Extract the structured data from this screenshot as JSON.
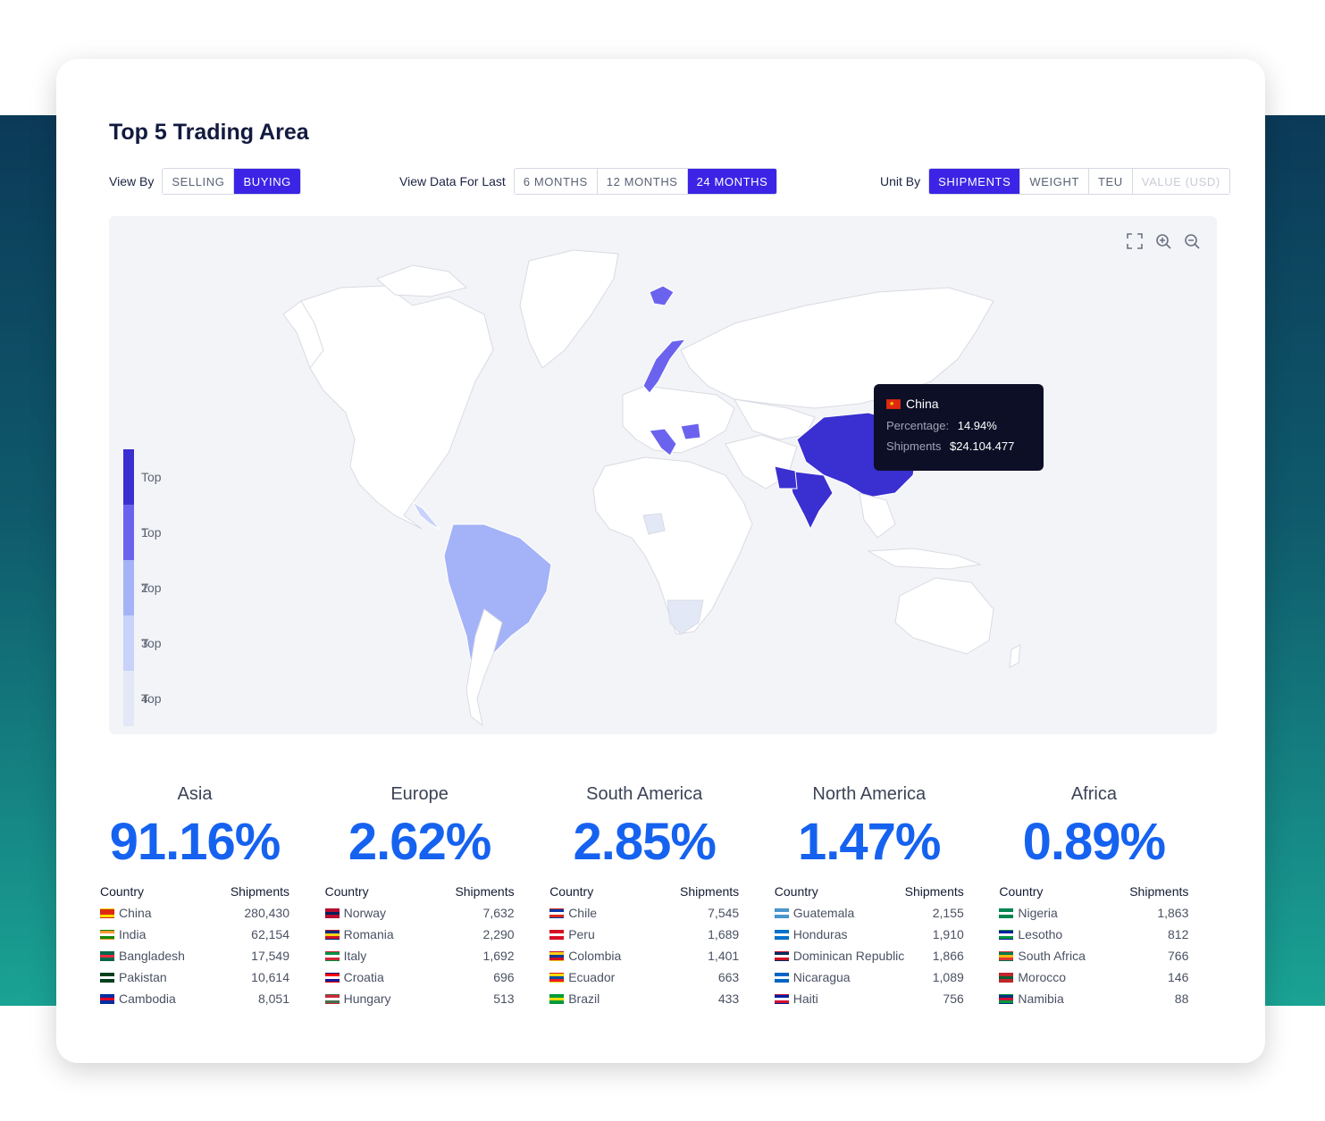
{
  "header": {
    "title": "Top 5 Trading Area"
  },
  "view_by": {
    "label": "View By",
    "options": [
      "SELLING",
      "BUYING"
    ],
    "selected": "BUYING"
  },
  "period": {
    "label": "View Data For Last",
    "options": [
      "6 MONTHS",
      "12 MONTHS",
      "24 MONTHS"
    ],
    "selected": "24 MONTHS"
  },
  "unit_by": {
    "label": "Unit By",
    "options": [
      "SHIPMENTS",
      "WEIGHT",
      "TEU",
      "VALUE (USD)"
    ],
    "selected": "SHIPMENTS",
    "disabled": [
      "VALUE (USD)"
    ]
  },
  "map": {
    "legend": [
      "Top 1",
      "Top 2",
      "Top 3",
      "Top 4",
      "Top 5"
    ],
    "legend_colors": [
      "#3a2fd0",
      "#6b63ee",
      "#a4b2f7",
      "#c8d2fa",
      "#e3e8f6"
    ],
    "tools": [
      "fullscreen-icon",
      "zoom-in-icon",
      "zoom-out-icon"
    ],
    "tooltip": {
      "country": "China",
      "percentage_label": "Percentage:",
      "percentage_value": "14.94%",
      "shipments_label": "Shipments",
      "shipments_value": "$24.104.477"
    }
  },
  "regions": [
    {
      "name": "Asia",
      "percent": "91.16%",
      "col_country": "Country",
      "col_shipments": "Shipments",
      "rows": [
        {
          "country": "China",
          "value": "280,430",
          "flag": [
            "#de2910",
            "#de2910",
            "#ffde00"
          ]
        },
        {
          "country": "India",
          "value": "62,154",
          "flag": [
            "#ff9933",
            "#ffffff",
            "#138808"
          ]
        },
        {
          "country": "Bangladesh",
          "value": "17,549",
          "flag": [
            "#006a4e",
            "#f42a41",
            "#006a4e"
          ]
        },
        {
          "country": "Pakistan",
          "value": "10,614",
          "flag": [
            "#01411c",
            "#ffffff",
            "#01411c"
          ]
        },
        {
          "country": "Cambodia",
          "value": "8,051",
          "flag": [
            "#032ea1",
            "#e00025",
            "#032ea1"
          ]
        }
      ]
    },
    {
      "name": "Europe",
      "percent": "2.62%",
      "col_country": "Country",
      "col_shipments": "Shipments",
      "rows": [
        {
          "country": "Norway",
          "value": "7,632",
          "flag": [
            "#ba0c2f",
            "#00205b",
            "#ba0c2f"
          ]
        },
        {
          "country": "Romania",
          "value": "2,290",
          "flag": [
            "#002b7f",
            "#fcd116",
            "#ce1126"
          ]
        },
        {
          "country": "Italy",
          "value": "1,692",
          "flag": [
            "#009246",
            "#ffffff",
            "#ce2b37"
          ]
        },
        {
          "country": "Croatia",
          "value": "696",
          "flag": [
            "#ff0000",
            "#ffffff",
            "#171796"
          ]
        },
        {
          "country": "Hungary",
          "value": "513",
          "flag": [
            "#ce2939",
            "#ffffff",
            "#477050"
          ]
        }
      ]
    },
    {
      "name": "South America",
      "percent": "2.85%",
      "col_country": "Country",
      "col_shipments": "Shipments",
      "rows": [
        {
          "country": "Chile",
          "value": "7,545",
          "flag": [
            "#0039a6",
            "#ffffff",
            "#d52b1e"
          ]
        },
        {
          "country": "Peru",
          "value": "1,689",
          "flag": [
            "#d91023",
            "#ffffff",
            "#d91023"
          ]
        },
        {
          "country": "Colombia",
          "value": "1,401",
          "flag": [
            "#fcd116",
            "#003893",
            "#ce1126"
          ]
        },
        {
          "country": "Ecuador",
          "value": "663",
          "flag": [
            "#ffdd00",
            "#034ea2",
            "#ed1c24"
          ]
        },
        {
          "country": "Brazil",
          "value": "433",
          "flag": [
            "#009c3b",
            "#ffdf00",
            "#009c3b"
          ]
        }
      ]
    },
    {
      "name": "North America",
      "percent": "1.47%",
      "col_country": "Country",
      "col_shipments": "Shipments",
      "rows": [
        {
          "country": "Guatemala",
          "value": "2,155",
          "flag": [
            "#4997d0",
            "#ffffff",
            "#4997d0"
          ]
        },
        {
          "country": "Honduras",
          "value": "1,910",
          "flag": [
            "#0073cf",
            "#ffffff",
            "#0073cf"
          ]
        },
        {
          "country": "Dominican Republic",
          "value": "1,866",
          "flag": [
            "#002d62",
            "#ffffff",
            "#ce1126"
          ]
        },
        {
          "country": "Nicaragua",
          "value": "1,089",
          "flag": [
            "#0067c6",
            "#ffffff",
            "#0067c6"
          ]
        },
        {
          "country": "Haiti",
          "value": "756",
          "flag": [
            "#00209f",
            "#ffffff",
            "#d21034"
          ]
        }
      ]
    },
    {
      "name": "Africa",
      "percent": "0.89%",
      "col_country": "Country",
      "col_shipments": "Shipments",
      "rows": [
        {
          "country": "Nigeria",
          "value": "1,863",
          "flag": [
            "#008751",
            "#ffffff",
            "#008751"
          ]
        },
        {
          "country": "Lesotho",
          "value": "812",
          "flag": [
            "#00209f",
            "#ffffff",
            "#009543"
          ]
        },
        {
          "country": "South Africa",
          "value": "766",
          "flag": [
            "#007a4d",
            "#ffb612",
            "#de3831"
          ]
        },
        {
          "country": "Morocco",
          "value": "146",
          "flag": [
            "#c1272d",
            "#006233",
            "#c1272d"
          ]
        },
        {
          "country": "Namibia",
          "value": "88",
          "flag": [
            "#003580",
            "#d21034",
            "#009543"
          ]
        }
      ]
    }
  ]
}
